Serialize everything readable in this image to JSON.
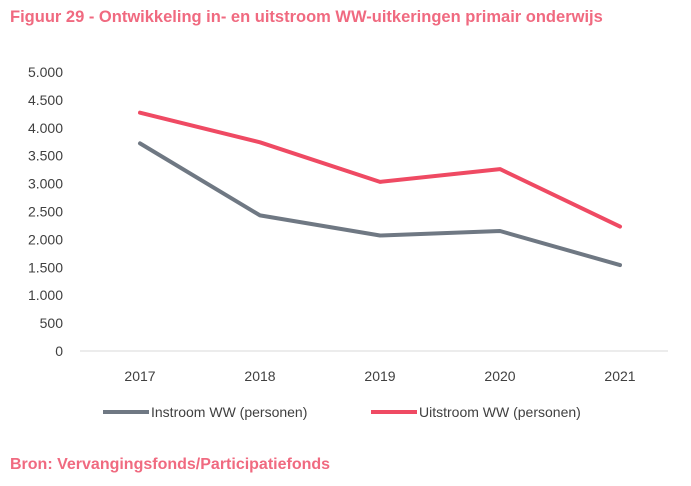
{
  "figure": {
    "title": "Figuur 29 - Ontwikkeling in- en uitstroom WW-uitkeringen primair onderwijs",
    "source": "Bron: Vervangingsfonds/Participatiefonds"
  },
  "chart_data": {
    "type": "line",
    "title": "Figuur 29 - Ontwikkeling in- en uitstroom WW-uitkeringen primair onderwijs",
    "xlabel": "",
    "ylabel": "",
    "categories": [
      "2017",
      "2018",
      "2019",
      "2020",
      "2021"
    ],
    "ylim": [
      0,
      5000
    ],
    "yticks": [
      0,
      500,
      1000,
      1500,
      2000,
      2500,
      3000,
      3500,
      4000,
      4500,
      5000
    ],
    "ytick_labels": [
      "0",
      "500",
      "1.000",
      "1.500",
      "2.000",
      "2.500",
      "3.000",
      "3.500",
      "4.000",
      "4.500",
      "5.000"
    ],
    "grid": false,
    "legend_position": "bottom",
    "series": [
      {
        "name": "Instroom WW (personen)",
        "color": "#6f7883",
        "values": [
          3720,
          2430,
          2070,
          2150,
          1540
        ]
      },
      {
        "name": "Uitstroom WW (personen)",
        "color": "#ef4a63",
        "values": [
          4270,
          3740,
          3030,
          3260,
          2230
        ]
      }
    ]
  }
}
